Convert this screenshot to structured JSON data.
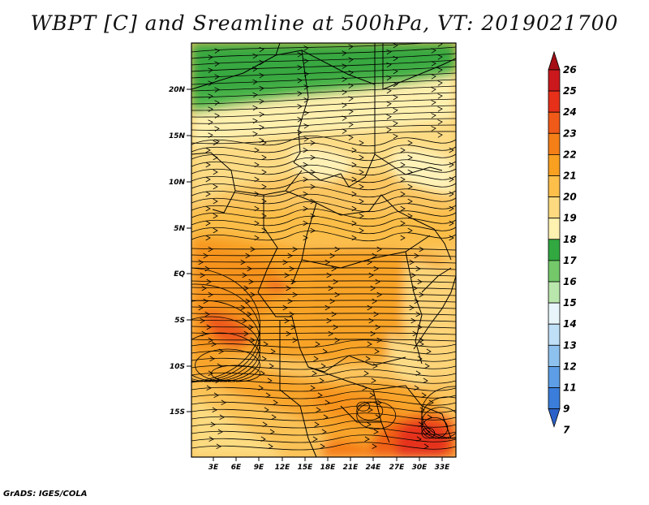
{
  "title": "WBPT [C] and Sreamline at 500hPa, VT: 2019021700",
  "credit": "GrADS: IGES/COLA",
  "map": {
    "lat_ticks": [
      "20N",
      "15N",
      "10N",
      "5N",
      "EQ",
      "5S",
      "10S",
      "15S"
    ],
    "lon_ticks": [
      "3E",
      "6E",
      "9E",
      "12E",
      "15E",
      "18E",
      "21E",
      "24E",
      "27E",
      "30E",
      "33E"
    ]
  },
  "colorbar": {
    "labels": [
      "26",
      "25",
      "24",
      "23",
      "22",
      "21",
      "20",
      "19",
      "18",
      "17",
      "16",
      "15",
      "14",
      "13",
      "12",
      "11",
      "9",
      "7"
    ],
    "colors": [
      "#a50f15",
      "#cb181d",
      "#e6301a",
      "#f05a18",
      "#f57f17",
      "#f9a021",
      "#fbbf4a",
      "#fdda80",
      "#fff1b0",
      "#31a840",
      "#74c86a",
      "#b9e6ac",
      "#e8f6fb",
      "#bfe0f7",
      "#8ec2ee",
      "#5d9ee6",
      "#3a7ddb",
      "#2b62c9"
    ]
  }
}
